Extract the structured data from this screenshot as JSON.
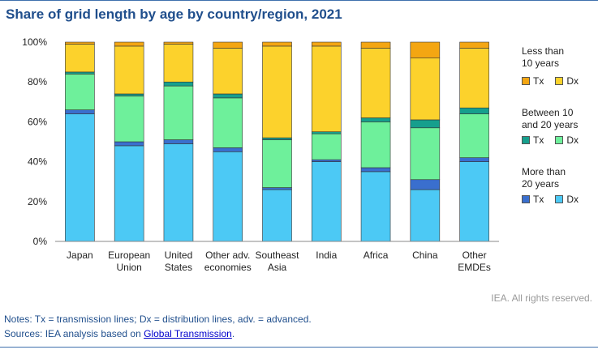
{
  "title": "Share of grid length by age by country/region, 2021",
  "chart_data": {
    "type": "bar",
    "stacked": true,
    "categories": [
      [
        "Japan"
      ],
      [
        "European",
        "Union"
      ],
      [
        "United",
        "States"
      ],
      [
        "Other adv.",
        "economies"
      ],
      [
        "Southeast",
        "Asia"
      ],
      [
        "India"
      ],
      [
        "Africa"
      ],
      [
        "China"
      ],
      [
        "Other",
        "EMDEs"
      ]
    ],
    "ylim": [
      0,
      100
    ],
    "yticks": [
      "0%",
      "20%",
      "40%",
      "60%",
      "80%",
      "100%"
    ],
    "series": [
      {
        "group": "More than 20 years",
        "name": "Dx",
        "color": "#4cc9f5",
        "values": [
          64,
          48,
          49,
          45,
          26,
          40,
          35,
          26,
          40
        ]
      },
      {
        "group": "More than 20 years",
        "name": "Tx",
        "color": "#3a6fce",
        "values": [
          2,
          2,
          2,
          2,
          1,
          1,
          2,
          5,
          2
        ]
      },
      {
        "group": "Between 10 and 20 years",
        "name": "Dx",
        "color": "#6ef09b",
        "values": [
          18,
          23,
          27,
          25,
          24,
          13,
          23,
          26,
          22
        ]
      },
      {
        "group": "Between 10 and 20 years",
        "name": "Tx",
        "color": "#169f8d",
        "values": [
          1,
          1,
          2,
          2,
          1,
          1,
          2,
          4,
          3
        ]
      },
      {
        "group": "Less than 10 years",
        "name": "Dx",
        "color": "#fcd22c",
        "values": [
          14,
          24,
          19,
          23,
          46,
          43,
          35,
          31,
          30
        ]
      },
      {
        "group": "Less than 10 years",
        "name": "Tx",
        "color": "#f4a612",
        "values": [
          1,
          2,
          1,
          3,
          2,
          2,
          3,
          8,
          3
        ]
      }
    ]
  },
  "legend": {
    "groups": [
      {
        "heading": [
          "Less than",
          "10 years"
        ],
        "tx": "Tx",
        "dx": "Dx",
        "tx_color": "#f4a612",
        "dx_color": "#fcd22c"
      },
      {
        "heading": [
          "Between 10",
          "and 20 years"
        ],
        "tx": "Tx",
        "dx": "Dx",
        "tx_color": "#169f8d",
        "dx_color": "#6ef09b"
      },
      {
        "heading": [
          "More than",
          "20 years"
        ],
        "tx": "Tx",
        "dx": "Dx",
        "tx_color": "#3a6fce",
        "dx_color": "#4cc9f5"
      }
    ]
  },
  "credit": "IEA. All rights reserved.",
  "notes": "Notes: Tx = transmission lines; Dx = distribution lines, adv. = advanced.",
  "sources": {
    "prefix": "Sources: IEA analysis based on ",
    "link": "Global Transmission",
    "suffix": "."
  }
}
